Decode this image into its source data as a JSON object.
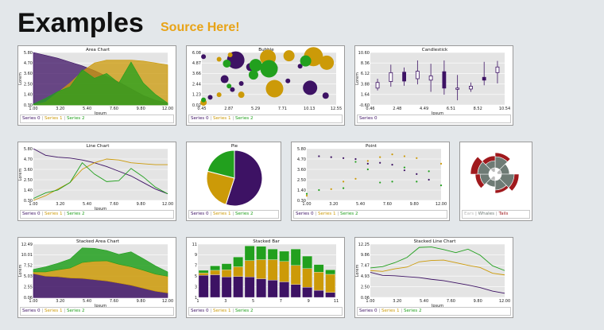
{
  "page": {
    "title": "Examples",
    "source_link": "Source Here!"
  },
  "colors": {
    "purple": "#3d1264",
    "gold": "#cc9a08",
    "green": "#22a01e",
    "plot_bg": "#e4e4e4",
    "red": "#a0191d",
    "gray": "#6e7b75"
  },
  "charts": [
    {
      "id": "area",
      "title": "Area Chart",
      "xlabel": "Ipsum",
      "ylabel": "Lorem",
      "xticks": [
        "1.00",
        "3.20",
        "5.40",
        "7.60",
        "9.80",
        "12.00"
      ],
      "yticks": [
        "0.30",
        "1.40",
        "2.50",
        "3.60",
        "4.70",
        "5.80"
      ],
      "legend": [
        {
          "label": "Series 0",
          "color": "#3d1264"
        },
        {
          "label": "Series 1",
          "color": "#cc9a08"
        },
        {
          "label": "Series 2",
          "color": "#22a01e"
        }
      ]
    },
    {
      "id": "bubble",
      "title": "Bubble",
      "xlabel": "",
      "ylabel": "",
      "xticks": [
        "0.45",
        "2.87",
        "5.29",
        "7.71",
        "10.13",
        "12.55"
      ],
      "yticks": [
        "0.02",
        "1.23",
        "2.44",
        "3.66",
        "4.87",
        "6.08"
      ],
      "legend": [
        {
          "label": "Series 0",
          "color": "#3d1264"
        },
        {
          "label": "Series 1",
          "color": "#cc9a08"
        },
        {
          "label": "Series 2",
          "color": "#22a01e"
        }
      ]
    },
    {
      "id": "candle",
      "title": "Candlestick",
      "xlabel": "Ipsum",
      "ylabel": "Lorem",
      "xticks": [
        "0.46",
        "2.48",
        "4.49",
        "6.51",
        "8.52",
        "10.54"
      ],
      "yticks": [
        "-0.60",
        "1.64",
        "3.88",
        "6.12",
        "8.36",
        "10.60"
      ],
      "legend": [
        {
          "label": "Series 0",
          "color": "#3d1264"
        }
      ]
    },
    {
      "id": "line",
      "title": "Line Chart",
      "xlabel": "Ipsum",
      "ylabel": "Lorem",
      "xticks": [
        "1.00",
        "3.20",
        "5.40",
        "7.60",
        "9.80",
        "12.00"
      ],
      "yticks": [
        "0.30",
        "1.40",
        "2.50",
        "3.60",
        "4.70",
        "5.80"
      ],
      "legend": [
        {
          "label": "Series 0",
          "color": "#3d1264"
        },
        {
          "label": "Series 1",
          "color": "#cc9a08"
        },
        {
          "label": "Series 2",
          "color": "#22a01e"
        }
      ]
    },
    {
      "id": "pie",
      "title": "Pie",
      "xlabel": "",
      "ylabel": "",
      "xticks": [],
      "yticks": [],
      "legend": [
        {
          "label": "Series 0",
          "color": "#3d1264"
        },
        {
          "label": "Series 1",
          "color": "#cc9a08"
        },
        {
          "label": "Series 2",
          "color": "#22a01e"
        }
      ]
    },
    {
      "id": "point",
      "title": "Point",
      "xlabel": "",
      "ylabel": "",
      "xticks": [
        "1.00",
        "3.20",
        "5.40",
        "7.60",
        "9.80",
        "12.00"
      ],
      "yticks": [
        "0.30",
        "1.40",
        "2.50",
        "3.60",
        "4.70",
        "5.80"
      ],
      "legend": [
        {
          "label": "Series 0",
          "color": "#3d1264"
        },
        {
          "label": "Series 1",
          "color": "#cc9a08"
        },
        {
          "label": "Series 2",
          "color": "#22a01e"
        }
      ]
    },
    {
      "id": "rose",
      "title": "",
      "xlabel": "",
      "ylabel": "",
      "xticks": [],
      "yticks": [],
      "legend": [
        {
          "label": "Ears",
          "color": "#bbbbbb"
        },
        {
          "label": "Whales",
          "color": "#6e7b75"
        },
        {
          "label": "Tails",
          "color": "#a0191d"
        }
      ]
    },
    {
      "id": "sarea",
      "title": "Stacked Area Chart",
      "xlabel": "Ipsum",
      "ylabel": "Lorem",
      "xticks": [
        "1.00",
        "3.20",
        "5.40",
        "7.60",
        "9.80",
        "12.00"
      ],
      "yticks": [
        "0.06",
        "2.55",
        "5.03",
        "7.52",
        "10.01",
        "12.49"
      ],
      "legend": [
        {
          "label": "Series 0",
          "color": "#3d1264"
        },
        {
          "label": "Series 1",
          "color": "#cc9a08"
        },
        {
          "label": "Series 2",
          "color": "#22a01e"
        }
      ]
    },
    {
      "id": "sbar",
      "title": "Stacked Bar",
      "xlabel": "",
      "ylabel": "",
      "xticks": [
        "1",
        "3",
        "5",
        "7",
        "9",
        "11"
      ],
      "yticks": [
        "1",
        "3",
        "5",
        "7",
        "9",
        "11"
      ],
      "legend": [
        {
          "label": "Series 0",
          "color": "#3d1264"
        },
        {
          "label": "Series 1",
          "color": "#cc9a08"
        },
        {
          "label": "Series 2",
          "color": "#22a01e"
        }
      ]
    },
    {
      "id": "sline",
      "title": "Stacked Line Chart",
      "xlabel": "Ipsum",
      "ylabel": "Lorem",
      "xticks": [
        "1.00",
        "3.20",
        "5.40",
        "7.60",
        "9.80",
        "12.00"
      ],
      "yticks": [
        "0.06",
        "2.50",
        "4.93",
        "7.47",
        "9.86",
        "12.25"
      ],
      "legend": [
        {
          "label": "Series 0",
          "color": "#3d1264"
        },
        {
          "label": "Series 1",
          "color": "#cc9a08"
        },
        {
          "label": "Series 2",
          "color": "#22a01e"
        }
      ]
    }
  ],
  "chart_data": [
    {
      "type": "area",
      "title": "Area Chart",
      "xlabel": "Ipsum",
      "ylabel": "Lorem",
      "xlim": [
        1,
        12
      ],
      "ylim": [
        0.3,
        5.8
      ],
      "x": [
        1,
        2,
        3,
        4,
        5,
        6,
        7,
        8,
        9,
        10,
        11,
        12
      ],
      "series": [
        {
          "name": "Series 0",
          "values": [
            5.8,
            5.5,
            5.2,
            4.8,
            4.4,
            3.9,
            3.3,
            2.7,
            2.0,
            1.3,
            0.8,
            0.5
          ]
        },
        {
          "name": "Series 1",
          "values": [
            0.3,
            0.6,
            1.6,
            2.6,
            3.8,
            4.7,
            5.0,
            5.0,
            5.0,
            4.9,
            4.7,
            4.5
          ]
        },
        {
          "name": "Series 2",
          "values": [
            0.4,
            1.0,
            1.7,
            2.2,
            4.0,
            3.1,
            3.6,
            2.6,
            4.8,
            2.6,
            1.4,
            0.5
          ]
        }
      ]
    },
    {
      "type": "scatter",
      "title": "Bubble",
      "xlim": [
        0.45,
        12.55
      ],
      "ylim": [
        0.02,
        6.08
      ],
      "series": [
        {
          "name": "Series 0",
          "points": [
            [
              0.6,
              5.6,
              3
            ],
            [
              3.5,
              5.2,
              11
            ],
            [
              4.8,
              4.4,
              5
            ],
            [
              2.5,
              3.0,
              5
            ],
            [
              4.0,
              2.5,
              3
            ],
            [
              7.0,
              4.3,
              4
            ],
            [
              8.2,
              2.8,
              3
            ],
            [
              9.3,
              4.5,
              3
            ],
            [
              10.2,
              2.0,
              9
            ],
            [
              11.6,
              1.1,
              4
            ],
            [
              3.2,
              1.8,
              3
            ],
            [
              1.2,
              0.9,
              3
            ]
          ]
        },
        {
          "name": "Series 1",
          "points": [
            [
              2.0,
              5.3,
              3
            ],
            [
              6.4,
              5.5,
              10
            ],
            [
              8.3,
              5.7,
              7
            ],
            [
              10.5,
              5.6,
              12
            ],
            [
              11.7,
              4.9,
              9
            ],
            [
              7.0,
              1.9,
              11
            ],
            [
              4.0,
              1.2,
              4
            ],
            [
              2.0,
              1.2,
              3
            ],
            [
              0.6,
              0.3,
              4
            ],
            [
              3.0,
              5.8,
              3
            ]
          ]
        },
        {
          "name": "Series 2",
          "points": [
            [
              5.3,
              4.6,
              8
            ],
            [
              6.5,
              4.2,
              11
            ],
            [
              5.1,
              3.5,
              6
            ],
            [
              2.7,
              4.8,
              5
            ],
            [
              0.6,
              0.6,
              3
            ],
            [
              9.8,
              5.1,
              7
            ],
            [
              2.9,
              2.2,
              3
            ]
          ]
        }
      ]
    },
    {
      "type": "candlestick",
      "title": "Candlestick",
      "xlabel": "Ipsum",
      "ylabel": "Lorem",
      "ylim": [
        -0.6,
        10.6
      ],
      "candles": [
        [
          1,
          2.5,
          5.0,
          3.0,
          4.2
        ],
        [
          2,
          3.3,
          8.0,
          4.4,
          6.3
        ],
        [
          3,
          3.5,
          7.4,
          4.5,
          6.4
        ],
        [
          4,
          3.8,
          8.9,
          5.0,
          6.6
        ],
        [
          5,
          2.2,
          8.2,
          4.7,
          5.6
        ],
        [
          6,
          1.6,
          8.9,
          3.0,
          6.5
        ],
        [
          7,
          0.4,
          5.8,
          2.8,
          3.0
        ],
        [
          8,
          2.2,
          4.2,
          2.8,
          3.4
        ],
        [
          9,
          3.6,
          8.6,
          4.7,
          5.3
        ],
        [
          10,
          4.0,
          8.8,
          6.3,
          7.5
        ]
      ]
    },
    {
      "type": "line",
      "title": "Line Chart",
      "xlabel": "Ipsum",
      "ylabel": "Lorem",
      "xlim": [
        1,
        12
      ],
      "ylim": [
        0.3,
        5.8
      ],
      "x": [
        1,
        2,
        3,
        4,
        5,
        6,
        7,
        8,
        9,
        10,
        11,
        12
      ],
      "series": [
        {
          "name": "Series 0",
          "values": [
            5.8,
            5.1,
            4.9,
            4.8,
            4.6,
            4.3,
            3.9,
            3.4,
            2.9,
            2.2,
            1.5,
            1.0
          ]
        },
        {
          "name": "Series 1",
          "values": [
            0.3,
            0.8,
            1.5,
            2.2,
            3.6,
            4.3,
            4.7,
            4.6,
            4.3,
            4.2,
            4.1,
            4.1
          ]
        },
        {
          "name": "Series 2",
          "values": [
            0.5,
            1.1,
            1.4,
            2.2,
            4.3,
            3.1,
            2.3,
            2.4,
            3.7,
            2.8,
            1.7,
            1.0
          ]
        }
      ]
    },
    {
      "type": "pie",
      "title": "Pie",
      "categories": [
        "Series 0",
        "Series 1",
        "Series 2"
      ],
      "values": [
        55,
        24,
        21
      ]
    },
    {
      "type": "scatter",
      "title": "Point",
      "xlim": [
        1,
        12
      ],
      "ylim": [
        0.3,
        5.8
      ],
      "series": [
        {
          "name": "Series 0",
          "points": [
            [
              2,
              5.0
            ],
            [
              3,
              4.9
            ],
            [
              5,
              4.7
            ],
            [
              6,
              4.2
            ],
            [
              8,
              4.1
            ],
            [
              9,
              3.5
            ],
            [
              10,
              3.1
            ],
            [
              11,
              2.5
            ],
            [
              4,
              4.8
            ],
            [
              7,
              4.3
            ]
          ]
        },
        {
          "name": "Series 1",
          "points": [
            [
              1,
              0.8
            ],
            [
              3,
              1.5
            ],
            [
              5,
              2.6
            ],
            [
              6,
              4.5
            ],
            [
              8,
              5.2
            ],
            [
              9,
              5.0
            ],
            [
              10,
              4.8
            ],
            [
              12,
              4.2
            ],
            [
              7,
              4.9
            ],
            [
              4,
              2.3
            ]
          ]
        },
        {
          "name": "Series 2",
          "points": [
            [
              1,
              1.0
            ],
            [
              2,
              1.4
            ],
            [
              4,
              1.6
            ],
            [
              5,
              4.4
            ],
            [
              6,
              3.6
            ],
            [
              7,
              2.2
            ],
            [
              8,
              2.3
            ],
            [
              9,
              3.8
            ],
            [
              10,
              2.3
            ],
            [
              11,
              3.4
            ],
            [
              12,
              1.9
            ]
          ]
        }
      ]
    },
    {
      "type": "rose",
      "categories": [
        "Ears",
        "Whales",
        "Tails"
      ]
    },
    {
      "type": "area",
      "title": "Stacked Area Chart",
      "xlabel": "Ipsum",
      "ylabel": "Lorem",
      "ylim": [
        0.06,
        12.49
      ],
      "x": [
        1,
        2,
        3,
        4,
        5,
        6,
        7,
        8,
        9,
        10,
        11,
        12
      ],
      "series": [
        {
          "name": "Series 0",
          "values": [
            5.6,
            5.0,
            4.9,
            4.6,
            4.5,
            4.2,
            3.9,
            3.4,
            2.9,
            2.2,
            1.5,
            1.1
          ]
        },
        {
          "name": "Series 1",
          "values": [
            0.4,
            1.0,
            1.6,
            2.3,
            3.7,
            4.3,
            4.7,
            4.4,
            4.3,
            4.2,
            4.0,
            3.9
          ]
        },
        {
          "name": "Series 2",
          "values": [
            0.6,
            1.2,
            1.5,
            2.1,
            3.4,
            3.0,
            2.4,
            2.3,
            3.5,
            2.7,
            1.9,
            1.0
          ]
        }
      ]
    },
    {
      "type": "bar",
      "title": "Stacked Bar",
      "categories": [
        "1",
        "2",
        "3",
        "4",
        "5",
        "6",
        "7",
        "8",
        "9",
        "10",
        "11",
        "12"
      ],
      "ylim": [
        1,
        12
      ],
      "series": [
        {
          "name": "Series 0",
          "values": [
            5,
            5.1,
            4.6,
            4.7,
            4.6,
            4.2,
            3.9,
            3.5,
            2.9,
            2.3,
            1.6,
            1.1
          ]
        },
        {
          "name": "Series 1",
          "values": [
            0.5,
            1.0,
            1.6,
            2.2,
            3.7,
            4.3,
            4.6,
            4.6,
            4.3,
            4.2,
            4.1,
            4.1
          ]
        },
        {
          "name": "Series 2",
          "values": [
            0.6,
            1.0,
            1.4,
            2.2,
            3.3,
            3.0,
            2.4,
            2.3,
            3.7,
            2.8,
            1.7,
            1.0
          ]
        }
      ]
    },
    {
      "type": "line",
      "title": "Stacked Line Chart",
      "xlabel": "Ipsum",
      "ylabel": "Lorem",
      "ylim": [
        0.06,
        12.25
      ],
      "x": [
        1,
        2,
        3,
        4,
        5,
        6,
        7,
        8,
        9,
        10,
        11,
        12
      ],
      "series": [
        {
          "name": "Series 0",
          "values": [
            5.8,
            5.1,
            5.0,
            4.8,
            4.6,
            4.2,
            3.9,
            3.4,
            2.9,
            2.3,
            1.5,
            1.0
          ]
        },
        {
          "name": "Series 1",
          "values": [
            6.2,
            6.0,
            6.6,
            7.0,
            8.2,
            8.5,
            8.6,
            8.0,
            7.4,
            6.9,
            5.6,
            5.2
          ]
        },
        {
          "name": "Series 2",
          "values": [
            6.8,
            7.1,
            8.0,
            9.2,
            11.5,
            11.6,
            11.0,
            10.3,
            11.1,
            9.7,
            7.3,
            6.2
          ]
        }
      ]
    }
  ]
}
